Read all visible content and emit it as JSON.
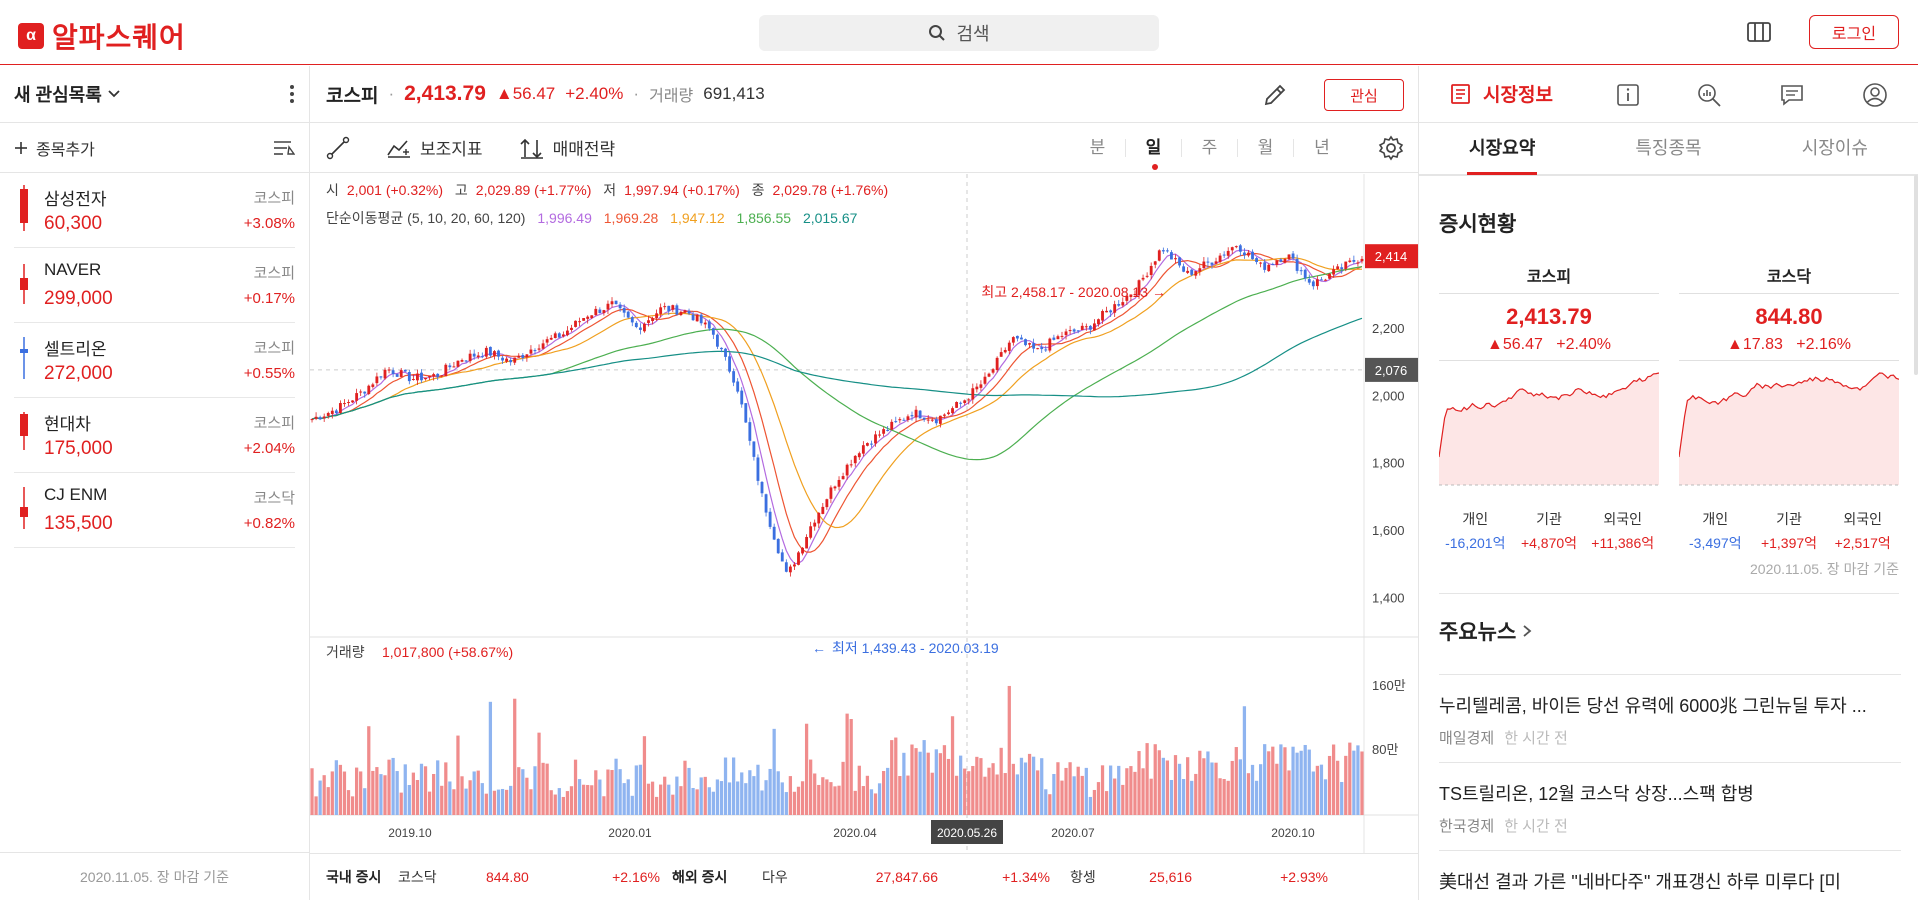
{
  "header": {
    "logo_mark": "α",
    "logo_text": "알파스퀘어",
    "search_placeholder": "검색",
    "login_label": "로그인"
  },
  "watchlist": {
    "title": "새 관심목록",
    "add_label": "종목추가",
    "footer": "2020.11.05. 장 마감 기준",
    "items": [
      {
        "name": "삼성전자",
        "market": "코스피",
        "price": "60,300",
        "change": "+3.08%",
        "candle_color": "#e02020"
      },
      {
        "name": "NAVER",
        "market": "코스피",
        "price": "299,000",
        "change": "+0.17%",
        "candle_color": "#e02020"
      },
      {
        "name": "셀트리온",
        "market": "코스피",
        "price": "272,000",
        "change": "+0.55%",
        "candle_color": "#3b6fe0"
      },
      {
        "name": "현대차",
        "market": "코스피",
        "price": "175,000",
        "change": "+2.04%",
        "candle_color": "#e02020"
      },
      {
        "name": "CJ ENM",
        "market": "코스닥",
        "price": "135,500",
        "change": "+0.82%",
        "candle_color": "#e02020"
      }
    ]
  },
  "quote": {
    "name": "코스피",
    "price": "2,413.79",
    "diff": "▲56.47",
    "pct": "+2.40%",
    "volume_label": "거래량",
    "volume": "691,413",
    "fav_label": "관심"
  },
  "toolbar": {
    "indicator_label": "보조지표",
    "strategy_label": "매매전략",
    "periods": [
      "분",
      "일",
      "주",
      "월",
      "년"
    ],
    "active_period": "일"
  },
  "ohlc": {
    "open_label": "시",
    "open": "2,001 (+0.32%)",
    "high_label": "고",
    "high": "2,029.89 (+1.77%)",
    "low_label": "저",
    "low": "1,997.94 (+0.17%)",
    "close_label": "종",
    "close": "2,029.78 (+1.76%)",
    "ma_label": "단순이동평균 (5, 10, 20, 60, 120)",
    "ma_values": [
      "1,996.49",
      "1,969.28",
      "1,947.12",
      "1,856.55",
      "2,015.67"
    ],
    "ma_colors": [
      "#b36be0",
      "#ee5533",
      "#f0a020",
      "#4caf50",
      "#168f86"
    ]
  },
  "chart_data": {
    "type": "line",
    "x_ticks": [
      "2019.10",
      "2020.01",
      "2020.04",
      "2020.07",
      "2020.10"
    ],
    "y_ticks": [
      "2,200",
      "2,000",
      "1,800",
      "1,600",
      "1,400"
    ],
    "ylim": [
      1380,
      2480
    ],
    "series": [
      {
        "values": [
          1930,
          1960,
          2010,
          2080,
          2050,
          2060,
          2110,
          2130,
          2100,
          2150,
          2180,
          2240,
          2270,
          2200,
          2260,
          2250,
          2190,
          2030,
          1700,
          1460,
          1620,
          1750,
          1850,
          1900,
          1950,
          1930,
          1980,
          2050,
          2170,
          2130,
          2180,
          2200,
          2260,
          2320,
          2440,
          2360,
          2400,
          2450,
          2380,
          2420,
          2330,
          2370,
          2414
        ]
      }
    ],
    "price_tag_current": "2,414",
    "price_tag_crosshair": "2,076",
    "high_annotation": "최고 2,458.17 - 2020.08.13",
    "low_annotation": "최저 1,439.43 - 2020.03.19",
    "crosshair_date": "2020.05.26",
    "volume_label": "거래량",
    "volume_value": "1,017,800 (+58.67%)",
    "volume_ticks": [
      "160만",
      "80만"
    ]
  },
  "market_ticker": {
    "domestic_label": "국내 증시",
    "domestic": {
      "name": "코스닥",
      "value": "844.80",
      "change": "+2.16%"
    },
    "overseas_label": "해외 증시",
    "overseas": [
      {
        "name": "다우",
        "value": "27,847.66",
        "change": "+1.34%"
      },
      {
        "name": "항셍",
        "value": "25,616",
        "change": "+2.93%"
      }
    ]
  },
  "right_panel": {
    "nav_title": "시장정보",
    "tabs": [
      "시장요약",
      "특징종목",
      "시장이슈"
    ],
    "active_tab": "시장요약",
    "status_title": "증시현황",
    "indices": [
      {
        "name": "코스피",
        "value": "2,413.79",
        "diff": "▲56.47",
        "pct": "+2.40%",
        "investors": [
          {
            "label": "개인",
            "value": "-16,201억",
            "sign": "neg"
          },
          {
            "label": "기관",
            "value": "+4,870억",
            "sign": "pos"
          },
          {
            "label": "외국인",
            "value": "+11,386억",
            "sign": "pos"
          }
        ]
      },
      {
        "name": "코스닥",
        "value": "844.80",
        "diff": "▲17.83",
        "pct": "+2.16%",
        "investors": [
          {
            "label": "개인",
            "value": "-3,497억",
            "sign": "neg"
          },
          {
            "label": "기관",
            "value": "+1,397억",
            "sign": "pos"
          },
          {
            "label": "외국인",
            "value": "+2,517억",
            "sign": "pos"
          }
        ]
      }
    ],
    "status_note": "2020.11.05. 장 마감 기준",
    "news_title": "주요뉴스",
    "news": [
      {
        "title": "누리텔레콤, 바이든 당선 유력에 6000兆 그린뉴딜 투자 ...",
        "source": "매일경제",
        "time": "한 시간 전"
      },
      {
        "title": "TS트릴리온, 12월 코스닥 상장...스팩 합병",
        "source": "한국경제",
        "time": "한 시간 전"
      },
      {
        "title": "美대선 결과 가른 \"네바다주\" 개표갱신 하루 미루다 [미",
        "source": "",
        "time": ""
      }
    ]
  }
}
